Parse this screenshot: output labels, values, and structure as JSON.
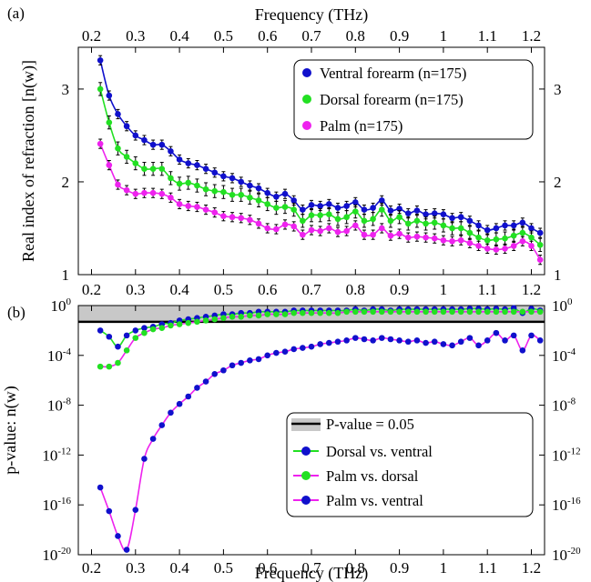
{
  "figure": {
    "panel_a_label": "(a)",
    "panel_b_label": "(b)"
  },
  "colors": {
    "ventral": "#1010cc",
    "dorsal": "#22e022",
    "palm": "#ee22ee",
    "threshold_band": "#c8c8c8",
    "threshold_line": "#000000"
  },
  "chart_data": [
    {
      "type": "line",
      "panel": "(a)",
      "xlabel": "Frequency (THz)",
      "xlabel_position": "top",
      "ylabel": "Real index of refraction [n(w)]",
      "xlim": [
        0.17,
        1.23
      ],
      "ylim": [
        1.0,
        3.45
      ],
      "xticks": [
        0.2,
        0.3,
        0.4,
        0.5,
        0.6,
        0.7,
        0.8,
        0.9,
        1,
        1.1,
        1.2
      ],
      "xtick_labels": [
        "0.2",
        "0.3",
        "0.4",
        "0.5",
        "0.6",
        "0.7",
        "0.8",
        "0.9",
        "1",
        "1.1",
        "1.2"
      ],
      "yticks": [
        1,
        2,
        3
      ],
      "ytick_labels": [
        "1",
        "2",
        "3"
      ],
      "legend_position": "top-right",
      "series": [
        {
          "name": "Ventral forearm (n=175)",
          "color_key": "ventral",
          "x": [
            0.22,
            0.24,
            0.26,
            0.28,
            0.3,
            0.32,
            0.34,
            0.36,
            0.38,
            0.4,
            0.42,
            0.44,
            0.46,
            0.48,
            0.5,
            0.52,
            0.54,
            0.56,
            0.58,
            0.6,
            0.62,
            0.64,
            0.66,
            0.68,
            0.7,
            0.72,
            0.74,
            0.76,
            0.78,
            0.8,
            0.82,
            0.84,
            0.86,
            0.88,
            0.9,
            0.92,
            0.94,
            0.96,
            0.98,
            1.0,
            1.02,
            1.04,
            1.06,
            1.08,
            1.1,
            1.12,
            1.14,
            1.16,
            1.18,
            1.2,
            1.22
          ],
          "y": [
            3.31,
            2.93,
            2.73,
            2.6,
            2.5,
            2.45,
            2.4,
            2.4,
            2.33,
            2.24,
            2.2,
            2.18,
            2.14,
            2.1,
            2.06,
            2.04,
            2.0,
            1.96,
            1.93,
            1.88,
            1.84,
            1.87,
            1.8,
            1.7,
            1.75,
            1.74,
            1.76,
            1.72,
            1.74,
            1.78,
            1.7,
            1.72,
            1.8,
            1.69,
            1.71,
            1.66,
            1.69,
            1.65,
            1.66,
            1.65,
            1.61,
            1.62,
            1.58,
            1.53,
            1.48,
            1.5,
            1.53,
            1.53,
            1.56,
            1.5,
            1.45
          ],
          "error": 0.05
        },
        {
          "name": "Dorsal forearm (n=175)",
          "color_key": "dorsal",
          "x": [
            0.22,
            0.24,
            0.26,
            0.28,
            0.3,
            0.32,
            0.34,
            0.36,
            0.38,
            0.4,
            0.42,
            0.44,
            0.46,
            0.48,
            0.5,
            0.52,
            0.54,
            0.56,
            0.58,
            0.6,
            0.62,
            0.64,
            0.66,
            0.68,
            0.7,
            0.72,
            0.74,
            0.76,
            0.78,
            0.8,
            0.82,
            0.84,
            0.86,
            0.88,
            0.9,
            0.92,
            0.94,
            0.96,
            0.98,
            1.0,
            1.02,
            1.04,
            1.06,
            1.08,
            1.1,
            1.12,
            1.14,
            1.16,
            1.18,
            1.2,
            1.22
          ],
          "y": [
            3.0,
            2.64,
            2.36,
            2.27,
            2.2,
            2.14,
            2.14,
            2.14,
            2.04,
            1.98,
            1.99,
            1.96,
            1.92,
            1.9,
            1.89,
            1.86,
            1.86,
            1.83,
            1.8,
            1.76,
            1.72,
            1.73,
            1.7,
            1.58,
            1.64,
            1.64,
            1.65,
            1.6,
            1.62,
            1.68,
            1.58,
            1.6,
            1.7,
            1.58,
            1.62,
            1.55,
            1.58,
            1.55,
            1.56,
            1.53,
            1.5,
            1.5,
            1.45,
            1.4,
            1.37,
            1.38,
            1.39,
            1.42,
            1.45,
            1.4,
            1.32
          ],
          "error": 0.07
        },
        {
          "name": "Palm (n=175)",
          "color_key": "palm",
          "x": [
            0.22,
            0.24,
            0.26,
            0.28,
            0.3,
            0.32,
            0.34,
            0.36,
            0.38,
            0.4,
            0.42,
            0.44,
            0.46,
            0.48,
            0.5,
            0.52,
            0.54,
            0.56,
            0.58,
            0.6,
            0.62,
            0.64,
            0.66,
            0.68,
            0.7,
            0.72,
            0.74,
            0.76,
            0.78,
            0.8,
            0.82,
            0.84,
            0.86,
            0.88,
            0.9,
            0.92,
            0.94,
            0.96,
            0.98,
            1.0,
            1.02,
            1.04,
            1.06,
            1.08,
            1.1,
            1.12,
            1.14,
            1.16,
            1.18,
            1.2,
            1.22
          ],
          "y": [
            2.41,
            2.18,
            1.97,
            1.91,
            1.87,
            1.88,
            1.88,
            1.87,
            1.83,
            1.76,
            1.74,
            1.73,
            1.7,
            1.67,
            1.63,
            1.62,
            1.61,
            1.59,
            1.55,
            1.5,
            1.49,
            1.54,
            1.52,
            1.43,
            1.48,
            1.47,
            1.5,
            1.46,
            1.47,
            1.53,
            1.43,
            1.43,
            1.5,
            1.42,
            1.44,
            1.4,
            1.41,
            1.4,
            1.39,
            1.37,
            1.36,
            1.37,
            1.34,
            1.31,
            1.28,
            1.27,
            1.28,
            1.31,
            1.36,
            1.31,
            1.16
          ],
          "error": 0.05
        }
      ]
    },
    {
      "type": "line",
      "panel": "(b)",
      "xlabel": "Frequency (THz)",
      "ylabel": "p-value: n(w)",
      "y_scale": "log10",
      "xlim": [
        0.17,
        1.23
      ],
      "ylim_log10": [
        -20,
        0
      ],
      "xticks": [
        0.2,
        0.3,
        0.4,
        0.5,
        0.6,
        0.7,
        0.8,
        0.9,
        1,
        1.1,
        1.2
      ],
      "xtick_labels": [
        "0.2",
        "0.3",
        "0.4",
        "0.5",
        "0.6",
        "0.7",
        "0.8",
        "0.9",
        "1",
        "1.1",
        "1.2"
      ],
      "yticks_log10": [
        0,
        -4,
        -8,
        -12,
        -16,
        -20
      ],
      "ytick_base": "10",
      "ytick_exponents": [
        "0",
        "-4",
        "-8",
        "-12",
        "-16",
        "-20"
      ],
      "threshold": 0.05,
      "legend_position": "bottom-right",
      "legend": {
        "threshold_label": "P-value = 0.05"
      },
      "series": [
        {
          "name": "Dorsal vs. ventral",
          "line_color_key": "dorsal",
          "marker_color_key": "ventral",
          "x": [
            0.22,
            0.24,
            0.26,
            0.28,
            0.3,
            0.32,
            0.34,
            0.36,
            0.38,
            0.4,
            0.42,
            0.44,
            0.46,
            0.48,
            0.5,
            0.52,
            0.54,
            0.56,
            0.58,
            0.6,
            0.62,
            0.64,
            0.66,
            0.68,
            0.7,
            0.72,
            0.74,
            0.76,
            0.78,
            0.8,
            0.82,
            0.84,
            0.86,
            0.88,
            0.9,
            0.92,
            0.94,
            0.96,
            0.98,
            1.0,
            1.02,
            1.04,
            1.06,
            1.08,
            1.1,
            1.12,
            1.14,
            1.16,
            1.18,
            1.2,
            1.22
          ],
          "log10_p": [
            -2.0,
            -2.5,
            -3.3,
            -2.4,
            -2.0,
            -1.8,
            -1.7,
            -1.5,
            -1.4,
            -1.2,
            -1.1,
            -1.0,
            -0.9,
            -0.8,
            -0.7,
            -0.7,
            -0.6,
            -0.6,
            -0.5,
            -0.5,
            -0.5,
            -0.5,
            -0.4,
            -0.4,
            -0.4,
            -0.4,
            -0.4,
            -0.4,
            -0.4,
            -0.3,
            -0.4,
            -0.3,
            -0.3,
            -0.4,
            -0.3,
            -0.3,
            -0.3,
            -0.3,
            -0.3,
            -0.3,
            -0.3,
            -0.3,
            -0.25,
            -0.25,
            -0.3,
            -0.25,
            -0.3,
            -0.2,
            -0.6,
            -0.25,
            -0.4
          ]
        },
        {
          "name": "Palm vs. dorsal",
          "line_color_key": "palm",
          "marker_color_key": "dorsal",
          "x": [
            0.22,
            0.24,
            0.26,
            0.28,
            0.3,
            0.32,
            0.34,
            0.36,
            0.38,
            0.4,
            0.42,
            0.44,
            0.46,
            0.48,
            0.5,
            0.52,
            0.54,
            0.56,
            0.58,
            0.6,
            0.62,
            0.64,
            0.66,
            0.68,
            0.7,
            0.72,
            0.74,
            0.76,
            0.78,
            0.8,
            0.82,
            0.84,
            0.86,
            0.88,
            0.9,
            0.92,
            0.94,
            0.96,
            0.98,
            1.0,
            1.02,
            1.04,
            1.06,
            1.08,
            1.1,
            1.12,
            1.14,
            1.16,
            1.18,
            1.2,
            1.22
          ],
          "log10_p": [
            -4.9,
            -4.9,
            -4.6,
            -3.6,
            -2.6,
            -2.2,
            -1.9,
            -1.8,
            -1.6,
            -1.5,
            -1.4,
            -1.3,
            -1.2,
            -1.1,
            -1.0,
            -0.9,
            -0.9,
            -0.8,
            -0.8,
            -0.7,
            -0.7,
            -0.7,
            -0.6,
            -0.6,
            -0.6,
            -0.6,
            -0.6,
            -0.6,
            -0.5,
            -0.5,
            -0.5,
            -0.5,
            -0.5,
            -0.5,
            -0.5,
            -0.5,
            -0.5,
            -0.5,
            -0.5,
            -0.5,
            -0.5,
            -0.5,
            -0.5,
            -0.5,
            -0.5,
            -0.5,
            -0.5,
            -0.5,
            -0.5,
            -0.5,
            -0.5
          ]
        },
        {
          "name": "Palm vs. ventral",
          "line_color_key": "palm",
          "marker_color_key": "ventral",
          "x": [
            0.22,
            0.24,
            0.26,
            0.28,
            0.3,
            0.32,
            0.34,
            0.36,
            0.38,
            0.4,
            0.42,
            0.44,
            0.46,
            0.48,
            0.5,
            0.52,
            0.54,
            0.56,
            0.58,
            0.6,
            0.62,
            0.64,
            0.66,
            0.68,
            0.7,
            0.72,
            0.74,
            0.76,
            0.78,
            0.8,
            0.82,
            0.84,
            0.86,
            0.88,
            0.9,
            0.92,
            0.94,
            0.96,
            0.98,
            1.0,
            1.02,
            1.04,
            1.06,
            1.08,
            1.1,
            1.12,
            1.14,
            1.16,
            1.18,
            1.2,
            1.22
          ],
          "log10_p": [
            -14.6,
            -16.5,
            -18.5,
            -19.6,
            -16.4,
            -12.3,
            -10.7,
            -9.6,
            -8.6,
            -7.9,
            -7.3,
            -6.6,
            -6.1,
            -5.5,
            -5.2,
            -4.8,
            -4.6,
            -4.4,
            -4.3,
            -4.0,
            -3.8,
            -3.7,
            -3.5,
            -3.4,
            -3.3,
            -3.1,
            -3.0,
            -2.9,
            -2.8,
            -2.6,
            -2.7,
            -2.8,
            -2.6,
            -2.7,
            -2.8,
            -2.9,
            -2.8,
            -3.0,
            -2.9,
            -3.1,
            -3.2,
            -2.9,
            -2.6,
            -3.2,
            -2.8,
            -2.2,
            -2.8,
            -2.4,
            -3.6,
            -2.4,
            -2.8
          ]
        }
      ]
    }
  ]
}
